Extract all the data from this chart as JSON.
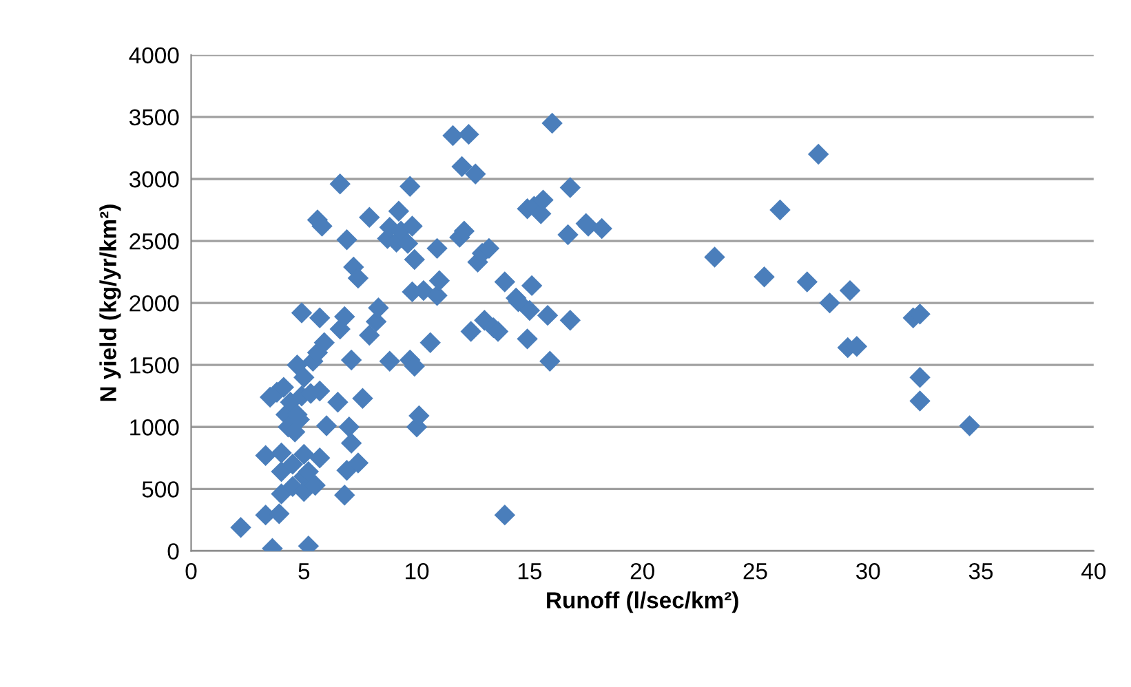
{
  "chart_data": {
    "type": "scatter",
    "xlabel": "Runoff (l/sec/km²)",
    "ylabel": "N yield (kg/yr/km²)",
    "xlim": [
      0,
      40
    ],
    "xticks": [
      0,
      5,
      10,
      15,
      20,
      25,
      30,
      35,
      40
    ],
    "ylim": [
      0,
      4000
    ],
    "yticks": [
      0,
      500,
      1000,
      1500,
      2000,
      2500,
      3000,
      3500,
      4000
    ],
    "grid": "y",
    "marker": "diamond",
    "legend": false,
    "series": [
      {
        "color": "#4a7ebb",
        "x": [
          2.2,
          3.3,
          3.3,
          3.6,
          3.5,
          3.8,
          3.9,
          4.0,
          4.0,
          4.0,
          4.1,
          4.2,
          4.3,
          4.4,
          4.5,
          4.5,
          4.6,
          4.7,
          4.7,
          4.8,
          4.9,
          4.9,
          5.0,
          5.0,
          5.0,
          5.0,
          5.2,
          5.2,
          5.3,
          5.4,
          5.5,
          5.6,
          5.6,
          5.7,
          5.7,
          5.7,
          5.8,
          5.9,
          6.0,
          6.6,
          6.5,
          6.6,
          6.8,
          6.8,
          6.9,
          6.9,
          7.0,
          7.1,
          7.1,
          7.2,
          7.4,
          7.4,
          7.6,
          7.9,
          7.9,
          8.2,
          8.3,
          8.7,
          8.8,
          8.8,
          9.1,
          9.2,
          9.3,
          9.6,
          9.7,
          9.7,
          9.8,
          9.8,
          9.9,
          9.9,
          10.0,
          10.1,
          10.3,
          10.6,
          10.9,
          10.9,
          11.0,
          11.6,
          11.9,
          12.1,
          12.0,
          12.3,
          12.4,
          12.6,
          12.7,
          12.9,
          13.0,
          13.2,
          13.4,
          13.6,
          13.9,
          13.9,
          14.4,
          14.5,
          14.9,
          14.9,
          15.0,
          15.1,
          15.2,
          15.5,
          15.6,
          15.8,
          15.9,
          16.0,
          16.8,
          16.8,
          16.7,
          17.5,
          17.6,
          18.2,
          23.2,
          25.4,
          26.1,
          27.3,
          27.8,
          28.3,
          29.1,
          29.2,
          29.5,
          32.0,
          32.3,
          32.3,
          32.3,
          34.5
        ],
        "values": [
          190,
          290,
          770,
          20,
          1240,
          1280,
          300,
          460,
          640,
          790,
          1320,
          1100,
          1000,
          1200,
          520,
          700,
          960,
          1500,
          1100,
          1060,
          1920,
          1250,
          780,
          1400,
          600,
          480,
          40,
          640,
          1270,
          1530,
          530,
          1600,
          2670,
          1880,
          1290,
          750,
          2620,
          1680,
          1010,
          2960,
          1200,
          1790,
          1890,
          450,
          650,
          2510,
          1000,
          1540,
          870,
          2290,
          710,
          2200,
          1230,
          2690,
          1740,
          1850,
          1960,
          2520,
          2610,
          1530,
          2490,
          2740,
          2580,
          2480,
          2940,
          1540,
          2620,
          2090,
          1490,
          2350,
          1000,
          1090,
          2100,
          1680,
          2440,
          2060,
          2180,
          3350,
          2530,
          2580,
          3100,
          3360,
          1770,
          3040,
          2330,
          2400,
          1860,
          2440,
          1800,
          1770,
          2170,
          290,
          2040,
          2010,
          2760,
          1710,
          1940,
          2140,
          2780,
          2720,
          2830,
          1900,
          1530,
          3450,
          2930,
          1860,
          2550,
          2640,
          2620,
          2600,
          2370,
          2210,
          2750,
          2170,
          3200,
          2000,
          1640,
          2100,
          1650,
          1880,
          1910,
          1400,
          1210,
          1010
        ]
      }
    ]
  }
}
